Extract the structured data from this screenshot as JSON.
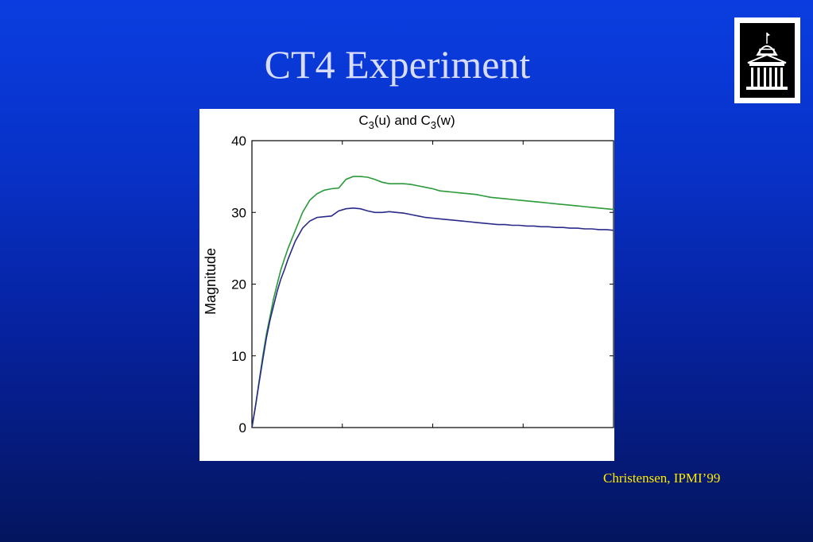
{
  "slide": {
    "title": "CT4 Experiment",
    "credit": "Christensen, IPMI’99"
  },
  "logo": {
    "icon": "building-dome-icon"
  },
  "chart_data": {
    "type": "line",
    "title": {
      "main": "C",
      "sub1": "3",
      "mid": "(u) and C",
      "sub2": "3",
      "tail": "(w)"
    },
    "xlabel": "",
    "ylabel": "Magnitude",
    "xlim": [
      0,
      100
    ],
    "ylim": [
      0,
      40
    ],
    "yticks": [
      "0",
      "10",
      "20",
      "30",
      "40"
    ],
    "xticks": [
      0,
      25,
      50,
      75,
      100
    ],
    "xtick_labels_visible": false,
    "grid": false,
    "series": [
      {
        "color": "#2a9a3a",
        "x": [
          0,
          1,
          2,
          3,
          4,
          5,
          6,
          7,
          8,
          9,
          10,
          12,
          14,
          16,
          18,
          20,
          22,
          24,
          26,
          28,
          30,
          32,
          34,
          36,
          38,
          40,
          42,
          44,
          46,
          48,
          50,
          52,
          54,
          56,
          58,
          60,
          62,
          64,
          66,
          68,
          70,
          72,
          74,
          76,
          78,
          80,
          82,
          84,
          86,
          88,
          90,
          92,
          94,
          96,
          98,
          100
        ],
        "y": [
          0,
          3,
          6.5,
          10,
          13,
          15.5,
          18,
          20,
          22,
          23.5,
          25,
          27.5,
          30,
          31.7,
          32.6,
          33.1,
          33.3,
          33.4,
          34.6,
          35,
          35,
          34.9,
          34.6,
          34.2,
          34,
          34,
          34,
          33.9,
          33.7,
          33.5,
          33.3,
          33,
          32.9,
          32.8,
          32.7,
          32.6,
          32.5,
          32.3,
          32.1,
          32,
          31.9,
          31.8,
          31.7,
          31.6,
          31.5,
          31.4,
          31.3,
          31.2,
          31.1,
          31.0,
          30.9,
          30.8,
          30.7,
          30.6,
          30.5,
          30.4
        ]
      },
      {
        "color": "#2a2a8a",
        "x": [
          0,
          1,
          2,
          3,
          4,
          5,
          6,
          7,
          8,
          9,
          10,
          12,
          14,
          16,
          18,
          20,
          22,
          24,
          26,
          28,
          30,
          32,
          34,
          36,
          38,
          40,
          42,
          44,
          46,
          48,
          50,
          52,
          54,
          56,
          58,
          60,
          62,
          64,
          66,
          68,
          70,
          72,
          74,
          76,
          78,
          80,
          82,
          84,
          86,
          88,
          90,
          92,
          94,
          96,
          98,
          100
        ],
        "y": [
          0,
          3,
          6.3,
          9.5,
          12.5,
          15,
          17,
          19,
          20.7,
          22,
          23.5,
          26,
          27.8,
          28.8,
          29.3,
          29.4,
          29.5,
          30.2,
          30.5,
          30.6,
          30.5,
          30.2,
          30,
          30,
          30.1,
          30,
          29.9,
          29.7,
          29.5,
          29.3,
          29.2,
          29.1,
          29,
          28.9,
          28.8,
          28.7,
          28.6,
          28.5,
          28.4,
          28.3,
          28.3,
          28.2,
          28.2,
          28.1,
          28.1,
          28.0,
          28.0,
          27.9,
          27.9,
          27.8,
          27.8,
          27.7,
          27.7,
          27.6,
          27.6,
          27.5
        ]
      }
    ]
  }
}
